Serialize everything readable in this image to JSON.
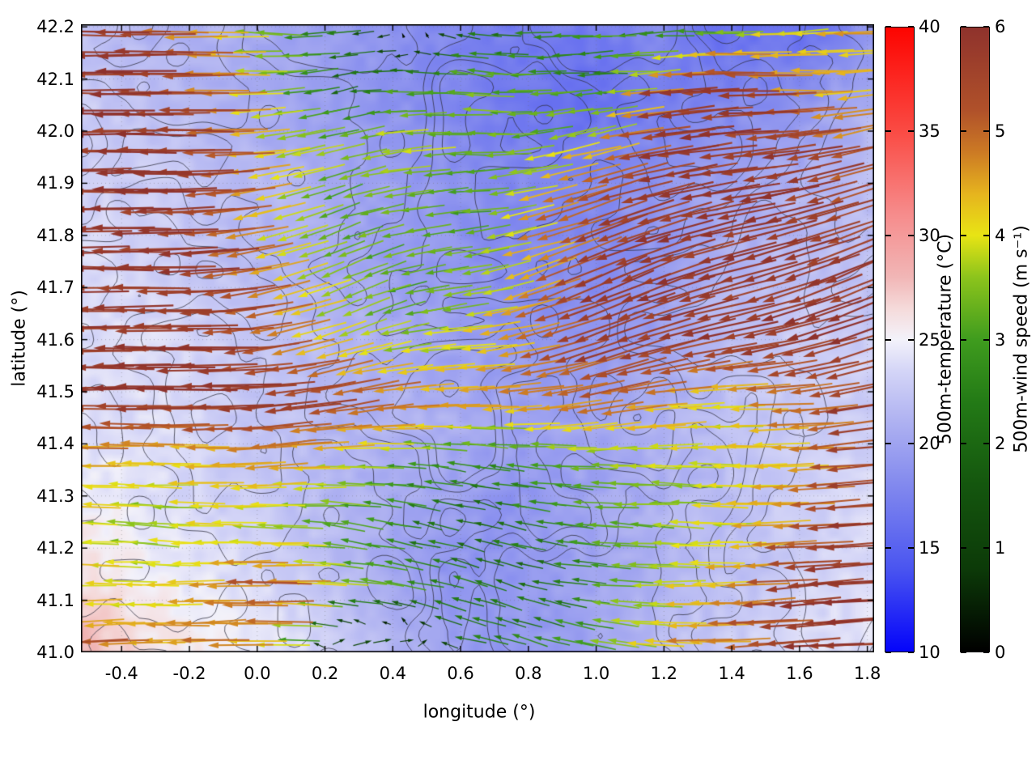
{
  "chart_data": {
    "type": "heatmap",
    "overlays": [
      "terrain-contours",
      "wind-vector-arrows"
    ],
    "title": "",
    "xlabel": "longitude (°)",
    "ylabel": "latitude (°)",
    "xlim": [
      -0.52,
      1.82
    ],
    "ylim": [
      41.0,
      42.205
    ],
    "x_tick_labels": [
      "-0.4",
      "-0.2",
      "0.0",
      "0.2",
      "0.4",
      "0.6",
      "0.8",
      "1.0",
      "1.2",
      "1.4",
      "1.6",
      "1.8"
    ],
    "y_tick_labels": [
      "41.0",
      "41.1",
      "41.2",
      "41.3",
      "41.4",
      "41.5",
      "41.6",
      "41.7",
      "41.8",
      "41.9",
      "42.0",
      "42.1",
      "42.2"
    ],
    "grid": "dotted",
    "colorbars": [
      {
        "id": "temperature",
        "label": "500m-temperature (°C)",
        "min": 10,
        "max": 40,
        "ticks": [
          10,
          15,
          20,
          25,
          30,
          35,
          40
        ],
        "stops": [
          [
            10,
            "#0404fa"
          ],
          [
            14,
            "#4a55f0"
          ],
          [
            18,
            "#8289ee"
          ],
          [
            21,
            "#aeb1f1"
          ],
          [
            23.5,
            "#d4d5f7"
          ],
          [
            25,
            "#f3f2fa"
          ],
          [
            26.5,
            "#f5dada"
          ],
          [
            28,
            "#f1b6b6"
          ],
          [
            31,
            "#f68c8c"
          ],
          [
            35,
            "#fa4b44"
          ],
          [
            40,
            "#fd0400"
          ]
        ]
      },
      {
        "id": "wind-speed",
        "label": "500m-wind speed (m s⁻¹)",
        "min": 0,
        "max": 6,
        "ticks": [
          0,
          1,
          2,
          3,
          4,
          5,
          6
        ],
        "stops": [
          [
            0,
            "#000000"
          ],
          [
            0.8,
            "#0c3a08"
          ],
          [
            1.6,
            "#14560e"
          ],
          [
            2.4,
            "#237a16"
          ],
          [
            3.0,
            "#3f9c1e"
          ],
          [
            3.6,
            "#8cc41c"
          ],
          [
            4.0,
            "#e8e414"
          ],
          [
            4.4,
            "#e6b41e"
          ],
          [
            4.8,
            "#cc7a24"
          ],
          [
            5.2,
            "#b0512a"
          ],
          [
            6,
            "#8f322c"
          ]
        ]
      }
    ],
    "temperature_field_c": {
      "nx": 12,
      "ny": 9,
      "order": "rows from top (lat 42.2) to bottom (lat 41.0), cols from lon -0.52 to 1.82",
      "values": [
        [
          22,
          21,
          21,
          20,
          19,
          18,
          17,
          17,
          18,
          16,
          16,
          19
        ],
        [
          23,
          22,
          21,
          20,
          19,
          18,
          17,
          16,
          17,
          18,
          19,
          21
        ],
        [
          23,
          23,
          22,
          21,
          20,
          19,
          18,
          18,
          19,
          20,
          21,
          22
        ],
        [
          24,
          23,
          22,
          21,
          20,
          19,
          18,
          18,
          19,
          21,
          22,
          22
        ],
        [
          24,
          24,
          23,
          22,
          21,
          20,
          19,
          19,
          20,
          22,
          23,
          23
        ],
        [
          24,
          24,
          23,
          22,
          21,
          21,
          20,
          20,
          21,
          22,
          23,
          23
        ],
        [
          25,
          24,
          23,
          22,
          21,
          20,
          19,
          20,
          21,
          22,
          23,
          24
        ],
        [
          26,
          25,
          24,
          23,
          21,
          19,
          19,
          20,
          21,
          22,
          23,
          24
        ],
        [
          28,
          26,
          25,
          24,
          22,
          20,
          19,
          20,
          22,
          23,
          24,
          24
        ]
      ]
    },
    "wind_field": {
      "ncols": 13,
      "nrows": 11,
      "order": "rows from top (lat 42.2) to bottom (lat 41.0), cols from lon -0.52 to 1.82",
      "speed_ms": [
        [
          5.8,
          5.5,
          4.5,
          3.0,
          2.5,
          1.2,
          2.0,
          2.5,
          3.0,
          2.0,
          3.5,
          4.0,
          4.5
        ],
        [
          5.8,
          5.8,
          5.0,
          3.5,
          2.0,
          3.0,
          3.5,
          3.0,
          2.5,
          5.5,
          5.8,
          4.5,
          4.0
        ],
        [
          5.8,
          5.8,
          5.5,
          4.0,
          3.5,
          4.0,
          3.0,
          3.5,
          4.5,
          5.8,
          5.8,
          5.8,
          5.0
        ],
        [
          5.8,
          5.8,
          5.5,
          4.0,
          3.0,
          3.5,
          3.0,
          4.5,
          5.5,
          5.8,
          5.8,
          5.8,
          5.5
        ],
        [
          5.8,
          5.8,
          5.8,
          4.5,
          3.5,
          3.0,
          3.5,
          4.5,
          5.8,
          5.8,
          5.8,
          5.8,
          5.8
        ],
        [
          5.8,
          5.8,
          5.8,
          5.0,
          4.0,
          3.5,
          4.0,
          5.0,
          5.8,
          5.8,
          5.8,
          5.8,
          5.8
        ],
        [
          5.8,
          5.8,
          5.8,
          5.8,
          5.5,
          5.0,
          4.5,
          4.5,
          5.0,
          4.5,
          4.0,
          5.0,
          5.8
        ],
        [
          4.5,
          4.0,
          4.2,
          4.5,
          4.0,
          3.0,
          2.5,
          3.0,
          3.5,
          3.8,
          4.0,
          4.5,
          5.8
        ],
        [
          4.0,
          3.5,
          4.0,
          3.5,
          3.0,
          2.5,
          2.0,
          2.5,
          3.0,
          3.5,
          4.0,
          5.0,
          5.8
        ],
        [
          4.2,
          3.8,
          4.5,
          5.5,
          3.5,
          3.0,
          2.5,
          2.0,
          3.0,
          4.0,
          4.5,
          5.8,
          5.8
        ],
        [
          5.5,
          4.5,
          5.0,
          4.0,
          2.0,
          1.8,
          3.0,
          2.5,
          3.5,
          4.5,
          5.0,
          5.8,
          5.8
        ]
      ],
      "direction_deg_ccw_from_east": [
        [
          180,
          180,
          180,
          175,
          185,
          5,
          170,
          180,
          185,
          180,
          180,
          185,
          180
        ],
        [
          180,
          180,
          180,
          185,
          190,
          180,
          175,
          185,
          180,
          185,
          180,
          180,
          185
        ],
        [
          180,
          180,
          180,
          190,
          195,
          185,
          180,
          190,
          195,
          190,
          185,
          190,
          195
        ],
        [
          180,
          180,
          185,
          195,
          200,
          190,
          185,
          195,
          200,
          195,
          190,
          195,
          200
        ],
        [
          180,
          180,
          185,
          195,
          205,
          195,
          190,
          200,
          205,
          200,
          195,
          200,
          205
        ],
        [
          180,
          180,
          180,
          190,
          200,
          190,
          185,
          195,
          200,
          195,
          190,
          195,
          200
        ],
        [
          180,
          180,
          180,
          185,
          190,
          185,
          180,
          185,
          190,
          185,
          180,
          185,
          190
        ],
        [
          180,
          178,
          182,
          185,
          180,
          175,
          170,
          175,
          180,
          178,
          180,
          182,
          185
        ],
        [
          180,
          175,
          180,
          178,
          172,
          168,
          165,
          170,
          175,
          178,
          180,
          183,
          185
        ],
        [
          180,
          178,
          182,
          180,
          175,
          170,
          160,
          165,
          175,
          180,
          182,
          185,
          183
        ],
        [
          185,
          180,
          182,
          178,
          10,
          5,
          170,
          160,
          170,
          178,
          182,
          184,
          182
        ]
      ]
    },
    "contours": {
      "description": "unlabeled terrain elevation contour lines",
      "color": "#2d2d3c"
    }
  }
}
